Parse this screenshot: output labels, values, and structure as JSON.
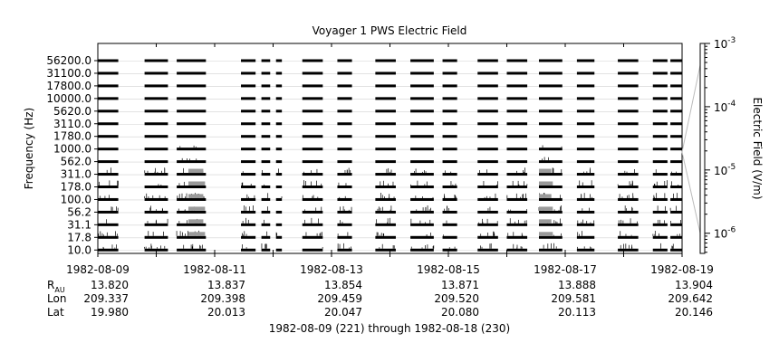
{
  "chart_data": {
    "type": "heatmap",
    "title": "Voyager 1 PWS Electric Field",
    "ylabel": "Frequency (Hz)",
    "colorbar_label": "Electric Field (V/m)",
    "colorbar_scale": "log",
    "colorbar_ticks": [
      {
        "base": "10",
        "exp": "-3",
        "value": 0.001
      },
      {
        "base": "10",
        "exp": "-4",
        "value": 0.0001
      },
      {
        "base": "10",
        "exp": "-5",
        "value": 1e-05
      },
      {
        "base": "10",
        "exp": "-6",
        "value": 1e-06
      }
    ],
    "channels": [
      "56200.0",
      "31100.0",
      "17800.0",
      "10000.0",
      "5620.0",
      "3110.0",
      "1780.0",
      "1000.0",
      "562.0",
      "311.0",
      "178.0",
      "100.0",
      "56.2",
      "31.1",
      "17.8",
      "10.0"
    ],
    "x_range": [
      "1982-08-09",
      "1982-08-19"
    ],
    "x_tick_dates": [
      "1982-08-09",
      "1982-08-11",
      "1982-08-13",
      "1982-08-15",
      "1982-08-17",
      "1982-08-19"
    ],
    "observation_day_segments": [
      [
        0.0,
        0.35
      ],
      [
        0.8,
        1.2
      ],
      [
        1.35,
        1.85
      ],
      [
        2.45,
        2.7
      ],
      [
        2.8,
        2.95
      ],
      [
        3.05,
        3.15
      ],
      [
        3.5,
        3.85
      ],
      [
        4.1,
        4.35
      ],
      [
        4.75,
        5.1
      ],
      [
        5.35,
        5.75
      ],
      [
        5.9,
        6.15
      ],
      [
        6.5,
        6.85
      ],
      [
        7.0,
        7.35
      ],
      [
        7.55,
        7.95
      ],
      [
        8.2,
        8.5
      ],
      [
        8.9,
        9.25
      ],
      [
        9.5,
        9.75
      ],
      [
        9.8,
        10.0
      ]
    ],
    "enhanced_day_ranges": [
      [
        1.55,
        1.85
      ],
      [
        7.55,
        7.8
      ]
    ],
    "ephemeris": {
      "rows": [
        {
          "label": "R",
          "sub": "AU",
          "values": [
            "13.820",
            "13.837",
            "13.854",
            "13.871",
            "13.888",
            "13.904"
          ]
        },
        {
          "label": "Lon",
          "sub": "",
          "values": [
            "209.337",
            "209.398",
            "209.459",
            "209.520",
            "209.581",
            "209.642"
          ]
        },
        {
          "label": "Lat",
          "sub": "",
          "values": [
            "19.980",
            "20.013",
            "20.047",
            "20.080",
            "20.113",
            "20.146"
          ]
        }
      ]
    },
    "footer": "1982-08-09 (221) through 1982-08-18 (230)"
  }
}
